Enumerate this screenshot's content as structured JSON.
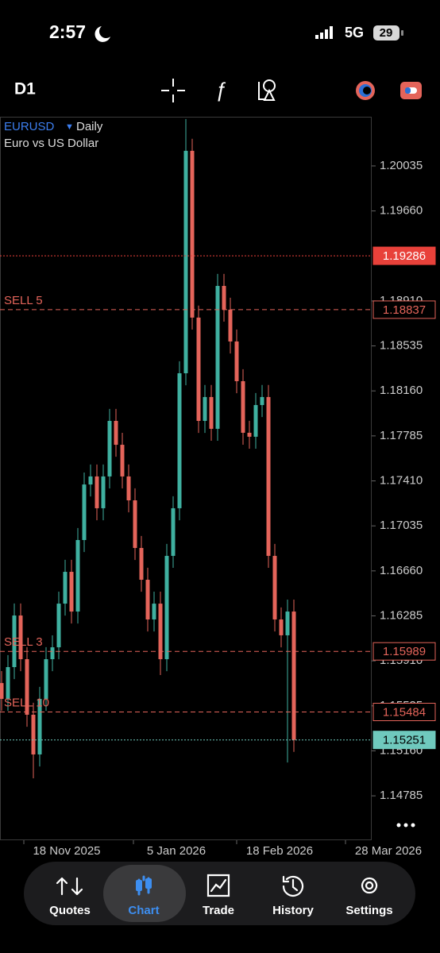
{
  "status_bar": {
    "time": "2:57",
    "network": "5G",
    "battery": "29"
  },
  "toolbar": {
    "timeframe": "D1"
  },
  "chart": {
    "type": "candlestick",
    "symbol": "EURUSD",
    "period": "Daily",
    "description": "Euro vs US Dollar",
    "ylim": [
      1.14415,
      1.20445
    ],
    "yticks": [
      {
        "value": 1.20035,
        "label": "1.20035"
      },
      {
        "value": 1.1966,
        "label": "1.19660"
      },
      {
        "value": 1.1891,
        "label": "1.18910"
      },
      {
        "value": 1.18535,
        "label": "1.18535"
      },
      {
        "value": 1.1816,
        "label": "1.18160"
      },
      {
        "value": 1.17785,
        "label": "1.17785"
      },
      {
        "value": 1.1741,
        "label": "1.17410"
      },
      {
        "value": 1.17035,
        "label": "1.17035"
      },
      {
        "value": 1.1666,
        "label": "1.16660"
      },
      {
        "value": 1.16285,
        "label": "1.16285"
      },
      {
        "value": 1.1591,
        "label": "1.15910"
      },
      {
        "value": 1.15535,
        "label": "1.15535"
      },
      {
        "value": 1.1516,
        "label": "1.15160"
      },
      {
        "value": 1.14785,
        "label": "1.14785"
      }
    ],
    "xticks": [
      "18 Nov 2025",
      "5 Jan 2026",
      "18 Feb 2026",
      "28 Mar 2026"
    ],
    "up_color": "#3fb0a0",
    "down_color": "#e4645a",
    "open": [
      1.15725,
      1.15593,
      1.15858,
      1.16288,
      1.15924,
      1.15461,
      1.1513,
      1.15593,
      1.15924,
      1.16023,
      1.16387,
      1.16652,
      1.16321,
      1.16917,
      1.1738,
      1.17447,
      1.17182,
      1.17447,
      1.1791,
      1.17711,
      1.17447,
      1.17248,
      1.16851,
      1.16586,
      1.16255,
      1.16387,
      1.15924,
      1.16785,
      1.17182,
      1.18307,
      1.20161,
      1.18771,
      1.1791,
      1.18109,
      1.17844,
      1.19035,
      1.18837,
      1.18572,
      1.18241,
      1.17811,
      1.17778,
      1.18042,
      1.18109,
      1.16785,
      1.16255,
      1.16123,
      1.16321
    ],
    "high": [
      1.15825,
      1.15958,
      1.16388,
      1.16388,
      1.16024,
      1.15561,
      1.15693,
      1.16024,
      1.16123,
      1.16487,
      1.16752,
      1.16752,
      1.17017,
      1.1748,
      1.17547,
      1.17547,
      1.17547,
      1.1801,
      1.1801,
      1.17811,
      1.17547,
      1.17348,
      1.16951,
      1.16686,
      1.16487,
      1.16487,
      1.16885,
      1.17282,
      1.18407,
      1.20426,
      1.20261,
      1.18871,
      1.18209,
      1.18209,
      1.19135,
      1.19135,
      1.18937,
      1.18672,
      1.18341,
      1.17911,
      1.18142,
      1.18209,
      1.18209,
      1.16885,
      1.16355,
      1.16421,
      1.16421
    ],
    "low": [
      1.15493,
      1.15493,
      1.15758,
      1.15824,
      1.15361,
      1.14931,
      1.1503,
      1.15493,
      1.15824,
      1.15923,
      1.16287,
      1.16221,
      1.16221,
      1.16817,
      1.1728,
      1.17082,
      1.17082,
      1.17347,
      1.17611,
      1.17347,
      1.17148,
      1.16751,
      1.16486,
      1.16155,
      1.16155,
      1.15792,
      1.15824,
      1.16685,
      1.17082,
      1.18207,
      1.18671,
      1.1781,
      1.1781,
      1.17744,
      1.17744,
      1.18737,
      1.18472,
      1.18141,
      1.17711,
      1.17678,
      1.17678,
      1.17942,
      1.16685,
      1.16155,
      1.16023,
      1.15063,
      1.15151
    ],
    "close": [
      1.15593,
      1.15858,
      1.16288,
      1.15924,
      1.15461,
      1.1513,
      1.15593,
      1.15924,
      1.16023,
      1.16387,
      1.16652,
      1.16321,
      1.16917,
      1.1738,
      1.17447,
      1.17182,
      1.17447,
      1.1791,
      1.17711,
      1.17447,
      1.17248,
      1.16851,
      1.16586,
      1.16255,
      1.16387,
      1.15924,
      1.16785,
      1.17182,
      1.18307,
      1.20161,
      1.18771,
      1.1791,
      1.18109,
      1.17844,
      1.19035,
      1.18837,
      1.18572,
      1.18241,
      1.17811,
      1.17778,
      1.18042,
      1.18109,
      1.16785,
      1.16255,
      1.16123,
      1.16321,
      1.15251
    ],
    "levels": [
      {
        "value": 1.19286,
        "color": "#e8413a",
        "style": "dotted",
        "box": "filled"
      },
      {
        "label": "SELL 5",
        "value": 1.18837,
        "color": "#e4645a",
        "style": "dashed",
        "box": "outline"
      },
      {
        "label": "SELL 3",
        "value": 1.15989,
        "color": "#e4645a",
        "style": "dashed",
        "box": "outline"
      },
      {
        "label": "SELL 10",
        "value": 1.15484,
        "color": "#e4645a",
        "style": "dashed",
        "box": "outline"
      },
      {
        "value": 1.15251,
        "color": "#6fc9bd",
        "style": "dotted",
        "box": "filled"
      }
    ]
  },
  "tab_bar": {
    "tabs": [
      "Quotes",
      "Chart",
      "Trade",
      "History",
      "Settings"
    ],
    "active": "Chart"
  }
}
